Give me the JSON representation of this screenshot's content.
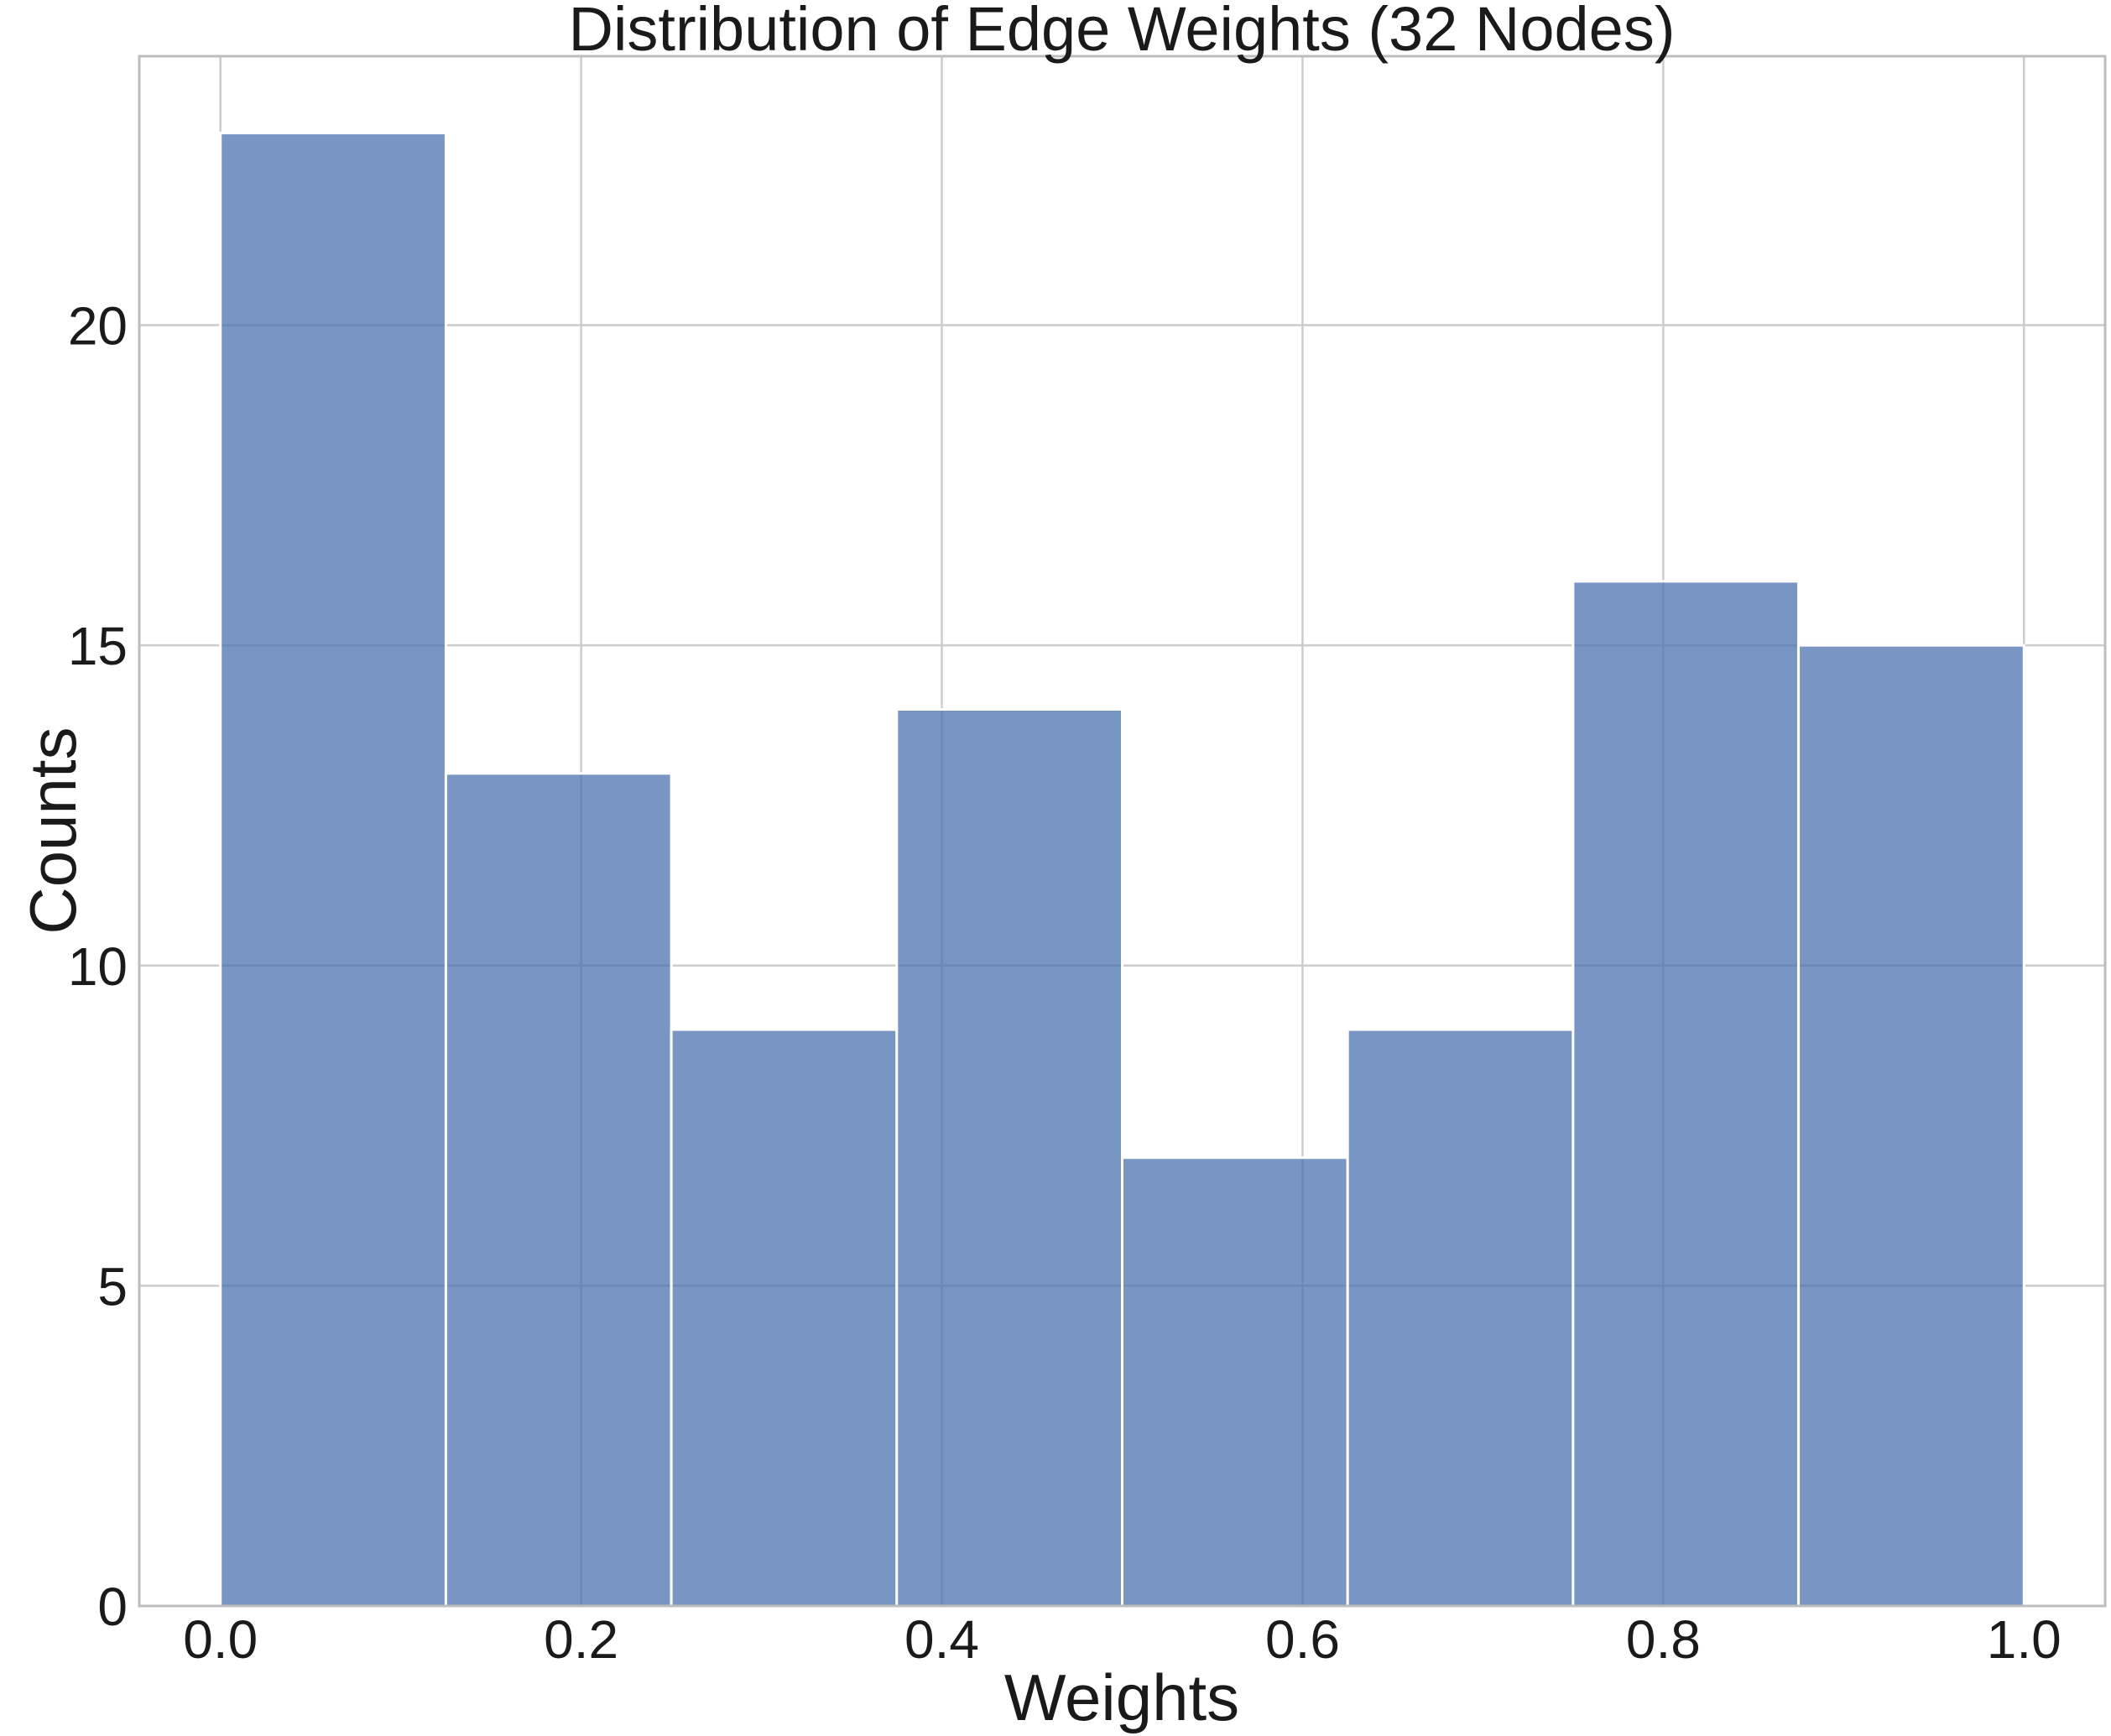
{
  "chart_data": {
    "type": "bar",
    "subtype": "histogram",
    "title": "Distribution of Edge Weights (32 Nodes)",
    "xlabel": "Weights",
    "ylabel": "Counts",
    "bin_edges": [
      0.0,
      0.125,
      0.25,
      0.375,
      0.5,
      0.625,
      0.75,
      0.875,
      1.0
    ],
    "counts": [
      23,
      13,
      9,
      14,
      7,
      9,
      16,
      15
    ],
    "x_ticks": [
      0.0,
      0.2,
      0.4,
      0.6,
      0.8,
      1.0
    ],
    "x_tick_labels": [
      "0.0",
      "0.2",
      "0.4",
      "0.6",
      "0.8",
      "1.0"
    ],
    "y_ticks": [
      0,
      5,
      10,
      15,
      20
    ],
    "y_tick_labels": [
      "0",
      "5",
      "10",
      "15",
      "20"
    ],
    "xlim": [
      -0.045,
      1.045
    ],
    "ylim": [
      0,
      24.2
    ],
    "grid": true,
    "legend": null,
    "colors": {
      "bar_fill": "#4C72B0",
      "bar_alpha": 0.75,
      "bar_edge": "#ffffff",
      "grid": "#cccccc",
      "spine": "#bdbdbd",
      "text": "#1a1a1a",
      "background": "#ffffff"
    }
  }
}
